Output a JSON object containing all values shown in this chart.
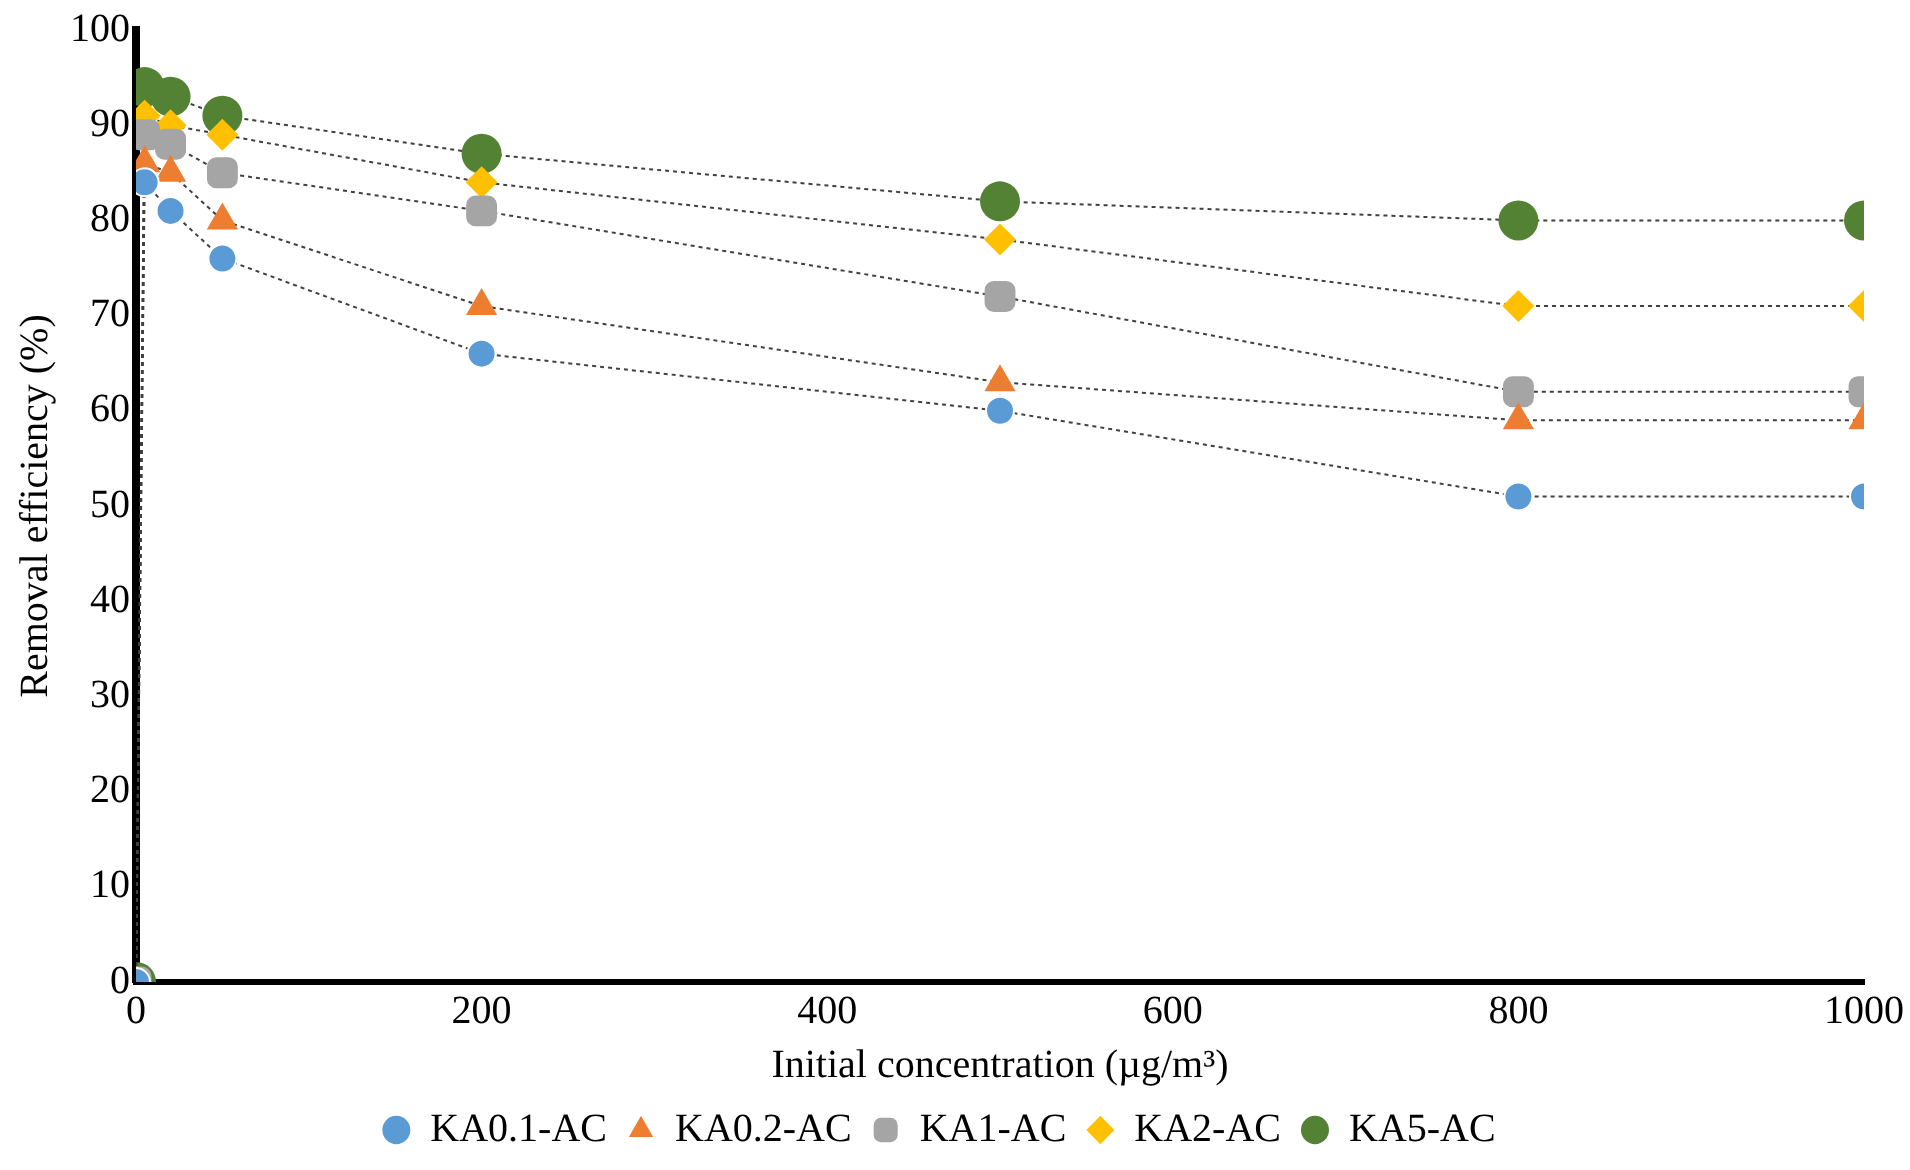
{
  "chart_data": {
    "type": "line",
    "xlabel": "Initial concentration (µg/m³)",
    "ylabel": "Removal efficiency (%)",
    "x": [
      0,
      5,
      20,
      50,
      200,
      500,
      800,
      1000
    ],
    "series": [
      {
        "name": "KA0.1-AC",
        "color": "#5b9bd5",
        "marker": "circle",
        "values": [
          0,
          84,
          81,
          76,
          66,
          60,
          51,
          51
        ]
      },
      {
        "name": "KA0.2-AC",
        "color": "#ed7d31",
        "marker": "triangle",
        "values": [
          0,
          86,
          85,
          80,
          71,
          63,
          59,
          59
        ]
      },
      {
        "name": "KA1-AC",
        "color": "#a5a5a5",
        "marker": "square",
        "values": [
          0,
          89,
          88,
          85,
          81,
          72,
          62,
          62
        ]
      },
      {
        "name": "KA2-AC",
        "color": "#ffc000",
        "marker": "diamond",
        "values": [
          0,
          91,
          90,
          89,
          84,
          78,
          71,
          71
        ]
      },
      {
        "name": "KA5-AC",
        "color": "#548235",
        "marker": "circle",
        "values": [
          0,
          94,
          93,
          91,
          87,
          82,
          80,
          80
        ]
      }
    ],
    "xlim": [
      0,
      1000
    ],
    "xticks": [
      0,
      200,
      400,
      600,
      800,
      1000
    ],
    "ylim": [
      0,
      100
    ],
    "yticks": [
      0,
      10,
      20,
      30,
      40,
      50,
      60,
      70,
      80,
      90,
      100
    ],
    "grid": false,
    "legend": "bottom",
    "line_style": "dotted"
  }
}
